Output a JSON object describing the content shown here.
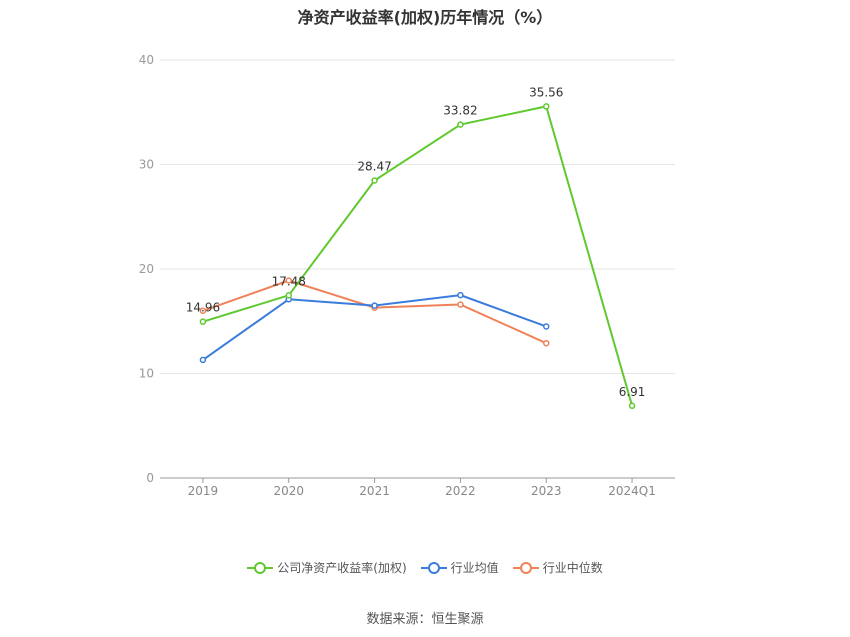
{
  "title": "净资产收益率(加权)历年情况（%）",
  "source": "数据来源：恒生聚源",
  "chart_data": {
    "type": "line",
    "categories": [
      "2019",
      "2020",
      "2021",
      "2022",
      "2023",
      "2024Q1"
    ],
    "ylim": [
      0,
      40
    ],
    "yticks": [
      0,
      10,
      20,
      30,
      40
    ],
    "grid": true,
    "legend_position": "bottom",
    "series": [
      {
        "name": "公司净资产收益率(加权)",
        "color": "#5fc92f",
        "values": [
          14.96,
          17.48,
          28.47,
          33.82,
          35.56,
          6.91
        ],
        "labels": [
          "14.96",
          "17.48",
          "28.47",
          "33.82",
          "35.56",
          "6.91"
        ]
      },
      {
        "name": "行业均值",
        "color": "#3b7ddd",
        "values": [
          11.3,
          17.1,
          16.5,
          17.5,
          14.5,
          null
        ]
      },
      {
        "name": "行业中位数",
        "color": "#f0825a",
        "values": [
          16.0,
          18.9,
          16.3,
          16.6,
          12.9,
          null
        ]
      }
    ]
  }
}
